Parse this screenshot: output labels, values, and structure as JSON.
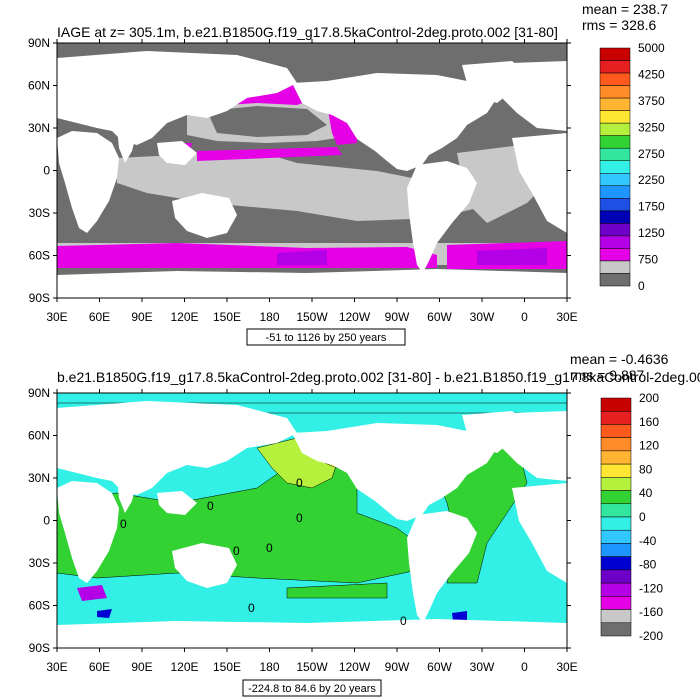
{
  "panels": [
    {
      "title": "IAGE at z= 305.1m, b.e21.B1850G.f19_g17.8.5kaControl-2deg.proto.002 [31-80]",
      "mean": "mean = 238.7",
      "rms": "rms = 328.6",
      "range_label": "-51 to 1126 by 250 years",
      "colorbar": {
        "labels": [
          "5000",
          "4250",
          "3750",
          "3250",
          "2750",
          "2250",
          "1750",
          "1250",
          "750",
          "0"
        ],
        "colors": [
          "#c80000",
          "#e62020",
          "#ff5a1e",
          "#ff8c28",
          "#ffb432",
          "#ffe632",
          "#b4f03c",
          "#32d232",
          "#32e6a0",
          "#32f0e6",
          "#32c8ff",
          "#1e96ff",
          "#1e50e6",
          "#0000b4",
          "#6e00c8",
          "#b400e6",
          "#e600e6",
          "#c8c8c8",
          "#6e6e6e"
        ]
      }
    },
    {
      "title": "b.e21.B1850G.f19_g17.8.5kaControl-2deg.proto.002 [31-80] - b.e21.B1850.f19_g17.8kaControl-2deg.00",
      "mean": "mean = -0.4636",
      "rms": "rms = 9.887",
      "range_label": "-224.8 to 84.6 by 20 years",
      "colorbar": {
        "labels": [
          "200",
          "160",
          "120",
          "80",
          "40",
          "0",
          "-40",
          "-80",
          "-120",
          "-160",
          "-200"
        ],
        "colors": [
          "#c80000",
          "#e62020",
          "#ff5a1e",
          "#ff8c28",
          "#ffb432",
          "#ffe632",
          "#b4f03c",
          "#32d232",
          "#32e6a0",
          "#32f0e6",
          "#32c8ff",
          "#1e96ff",
          "#0000d2",
          "#6e00c8",
          "#b400e6",
          "#e600e6",
          "#c8c8c8",
          "#6e6e6e"
        ]
      }
    }
  ],
  "axes": {
    "y_ticks": [
      "90N",
      "60N",
      "30N",
      "0",
      "30S",
      "60S",
      "90S"
    ],
    "x_ticks": [
      "30E",
      "60E",
      "90E",
      "120E",
      "150E",
      "180",
      "150W",
      "120W",
      "90W",
      "60W",
      "30W",
      "0",
      "30E"
    ]
  },
  "contour_labels": [
    "0",
    "0",
    "0",
    "0",
    "0",
    "0",
    "0",
    "0"
  ],
  "palette": {
    "land": "#ffffff",
    "iage_low": "#6e6e6e",
    "iage_mid": "#c8c8c8",
    "iage_high": "#e600e6",
    "iage_top": "#b400e6",
    "iage_deep": "#1e50e6",
    "diff_zero": "#32f0e6",
    "diff_pos": "#32d232",
    "diff_pos2": "#b4f03c",
    "diff_pos3": "#ffe632"
  }
}
